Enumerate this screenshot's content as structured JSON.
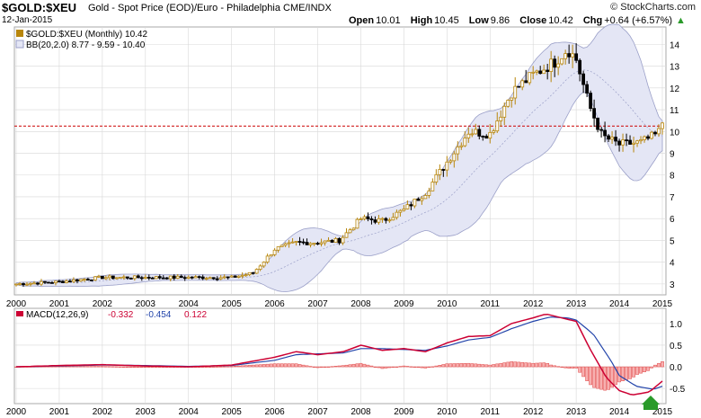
{
  "header": {
    "symbol": "$GOLD:$XEU",
    "description": "Gold - Spot Price (EOD)/Euro - Philadelphia  CME/INDX",
    "brand": "© StockCharts.com",
    "date": "12-Jan-2015",
    "open_label": "Open",
    "open_value": "10.01",
    "high_label": "High",
    "high_value": "10.45",
    "low_label": "Low",
    "low_value": "9.86",
    "close_label": "Close",
    "close_value": "10.42",
    "chg_label": "Chg",
    "chg_value": "+0.64 (+6.57%)",
    "chg_arrow": "▲"
  },
  "colors": {
    "up": "#b8860b",
    "down": "#000000",
    "band_fill": "#e4e6f5",
    "band_line": "#9a9fc8",
    "ref_line": "#cc0000",
    "macd": "#cc0033",
    "signal": "#2244aa",
    "hist": "#e04444",
    "arrow": "#2a9a2a",
    "grid": "#d8d8d8"
  },
  "chart_data": [
    {
      "type": "candlestick",
      "title": "$GOLD:$XEU (Monthly) 10.42",
      "legend": [
        "$GOLD:$XEU (Monthly) 10.42",
        "BB(20,2.0) 8.77 - 9.59 - 10.40"
      ],
      "x_ticks": [
        "2000",
        "2001",
        "2002",
        "2003",
        "2004",
        "2005",
        "2006",
        "2007",
        "2008",
        "2009",
        "2010",
        "2011",
        "2012",
        "2013",
        "2014",
        "2015"
      ],
      "y_ticks": [
        "3",
        "4",
        "5",
        "6",
        "7",
        "8",
        "9",
        "10",
        "11",
        "12",
        "13",
        "14"
      ],
      "ylim": [
        2.5,
        14.8
      ],
      "reference_line": 10.25,
      "close_anchors": [
        [
          2000,
          3.0
        ],
        [
          2001,
          3.1
        ],
        [
          2002,
          3.3
        ],
        [
          2003,
          3.3
        ],
        [
          2004,
          3.3
        ],
        [
          2005,
          3.3
        ],
        [
          2005.5,
          3.5
        ],
        [
          2006,
          4.6
        ],
        [
          2006.5,
          4.9
        ],
        [
          2007,
          4.9
        ],
        [
          2007.5,
          5.0
        ],
        [
          2008,
          6.0
        ],
        [
          2008.5,
          5.9
        ],
        [
          2009,
          6.4
        ],
        [
          2009.5,
          7.2
        ],
        [
          2010,
          8.6
        ],
        [
          2010.5,
          10.0
        ],
        [
          2011,
          9.9
        ],
        [
          2011.5,
          11.8
        ],
        [
          2012,
          12.6
        ],
        [
          2012.5,
          13.2
        ],
        [
          2012.8,
          13.8
        ],
        [
          2013,
          13.3
        ],
        [
          2013.3,
          11.2
        ],
        [
          2013.6,
          9.8
        ],
        [
          2014,
          9.4
        ],
        [
          2014.5,
          9.5
        ],
        [
          2014.9,
          9.9
        ],
        [
          2015,
          10.42
        ]
      ],
      "bollinger": {
        "label": "BB(20,2.0)",
        "lower": 8.77,
        "middle": 9.59,
        "upper": 10.4
      }
    },
    {
      "type": "line",
      "title": "MACD(12,26,9)",
      "legend_values": [
        "-0.332",
        "-0.454",
        "0.122"
      ],
      "x_ticks": [
        "2000",
        "2001",
        "2002",
        "2003",
        "2004",
        "2005",
        "2006",
        "2007",
        "2008",
        "2009",
        "2010",
        "2011",
        "2012",
        "2013",
        "2014",
        "2015"
      ],
      "y_ticks": [
        "1.0",
        "0.5",
        "0.0",
        "-0.5"
      ],
      "ylim": [
        -0.85,
        1.35
      ],
      "macd_anchors": [
        [
          2000,
          0.0
        ],
        [
          2001,
          0.03
        ],
        [
          2002,
          0.05
        ],
        [
          2003,
          0.02
        ],
        [
          2004,
          0.0
        ],
        [
          2005,
          0.04
        ],
        [
          2006,
          0.22
        ],
        [
          2006.5,
          0.35
        ],
        [
          2007,
          0.28
        ],
        [
          2007.6,
          0.35
        ],
        [
          2008,
          0.5
        ],
        [
          2008.5,
          0.38
        ],
        [
          2009,
          0.42
        ],
        [
          2009.5,
          0.35
        ],
        [
          2010,
          0.55
        ],
        [
          2010.5,
          0.7
        ],
        [
          2011,
          0.72
        ],
        [
          2011.5,
          1.0
        ],
        [
          2012,
          1.13
        ],
        [
          2012.3,
          1.22
        ],
        [
          2012.7,
          1.12
        ],
        [
          2013,
          1.05
        ],
        [
          2013.3,
          0.45
        ],
        [
          2013.7,
          -0.25
        ],
        [
          2014,
          -0.55
        ],
        [
          2014.3,
          -0.65
        ],
        [
          2014.7,
          -0.58
        ],
        [
          2015,
          -0.33
        ]
      ],
      "signal_anchors": [
        [
          2000,
          0.0
        ],
        [
          2001,
          0.02
        ],
        [
          2002,
          0.04
        ],
        [
          2003,
          0.03
        ],
        [
          2004,
          0.01
        ],
        [
          2005,
          0.03
        ],
        [
          2006,
          0.15
        ],
        [
          2006.5,
          0.28
        ],
        [
          2007,
          0.3
        ],
        [
          2007.6,
          0.32
        ],
        [
          2008,
          0.42
        ],
        [
          2008.5,
          0.42
        ],
        [
          2009,
          0.4
        ],
        [
          2009.5,
          0.38
        ],
        [
          2010,
          0.48
        ],
        [
          2010.5,
          0.62
        ],
        [
          2011,
          0.68
        ],
        [
          2011.5,
          0.88
        ],
        [
          2012,
          1.05
        ],
        [
          2012.4,
          1.15
        ],
        [
          2012.8,
          1.13
        ],
        [
          2013,
          1.08
        ],
        [
          2013.4,
          0.75
        ],
        [
          2013.8,
          0.15
        ],
        [
          2014,
          -0.2
        ],
        [
          2014.4,
          -0.45
        ],
        [
          2014.8,
          -0.52
        ],
        [
          2015,
          -0.45
        ]
      ]
    }
  ]
}
